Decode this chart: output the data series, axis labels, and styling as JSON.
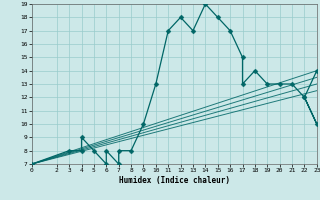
{
  "title": "",
  "xlabel": "Humidex (Indice chaleur)",
  "xlim": [
    0,
    23
  ],
  "ylim": [
    7,
    19
  ],
  "xticks": [
    0,
    2,
    3,
    4,
    5,
    6,
    7,
    8,
    9,
    10,
    11,
    12,
    13,
    14,
    15,
    16,
    17,
    18,
    19,
    20,
    21,
    22,
    23
  ],
  "yticks": [
    7,
    8,
    9,
    10,
    11,
    12,
    13,
    14,
    15,
    16,
    17,
    18,
    19
  ],
  "bg_color": "#cce8e8",
  "grid_color": "#99cccc",
  "line_color": "#006666",
  "main_curve_x": [
    0,
    3,
    4,
    4,
    5,
    6,
    6,
    7,
    7,
    8,
    9,
    10,
    11,
    12,
    13,
    14,
    15,
    16,
    17,
    17,
    18,
    19,
    20,
    21,
    22,
    23,
    22,
    23
  ],
  "main_curve_y": [
    7,
    8,
    8,
    9,
    8,
    7,
    8,
    7,
    8,
    8,
    10,
    13,
    17,
    18,
    17,
    19,
    18,
    17,
    15,
    13,
    14,
    13,
    13,
    13,
    12,
    10,
    12,
    14
  ],
  "diag_lines": [
    {
      "x": [
        0,
        23
      ],
      "y": [
        7,
        12.5
      ]
    },
    {
      "x": [
        0,
        23
      ],
      "y": [
        7,
        13.0
      ]
    },
    {
      "x": [
        0,
        23
      ],
      "y": [
        7,
        13.5
      ]
    },
    {
      "x": [
        0,
        23
      ],
      "y": [
        7,
        14.0
      ]
    }
  ],
  "marker": "D",
  "markersize": 2.5,
  "linewidth": 0.9
}
